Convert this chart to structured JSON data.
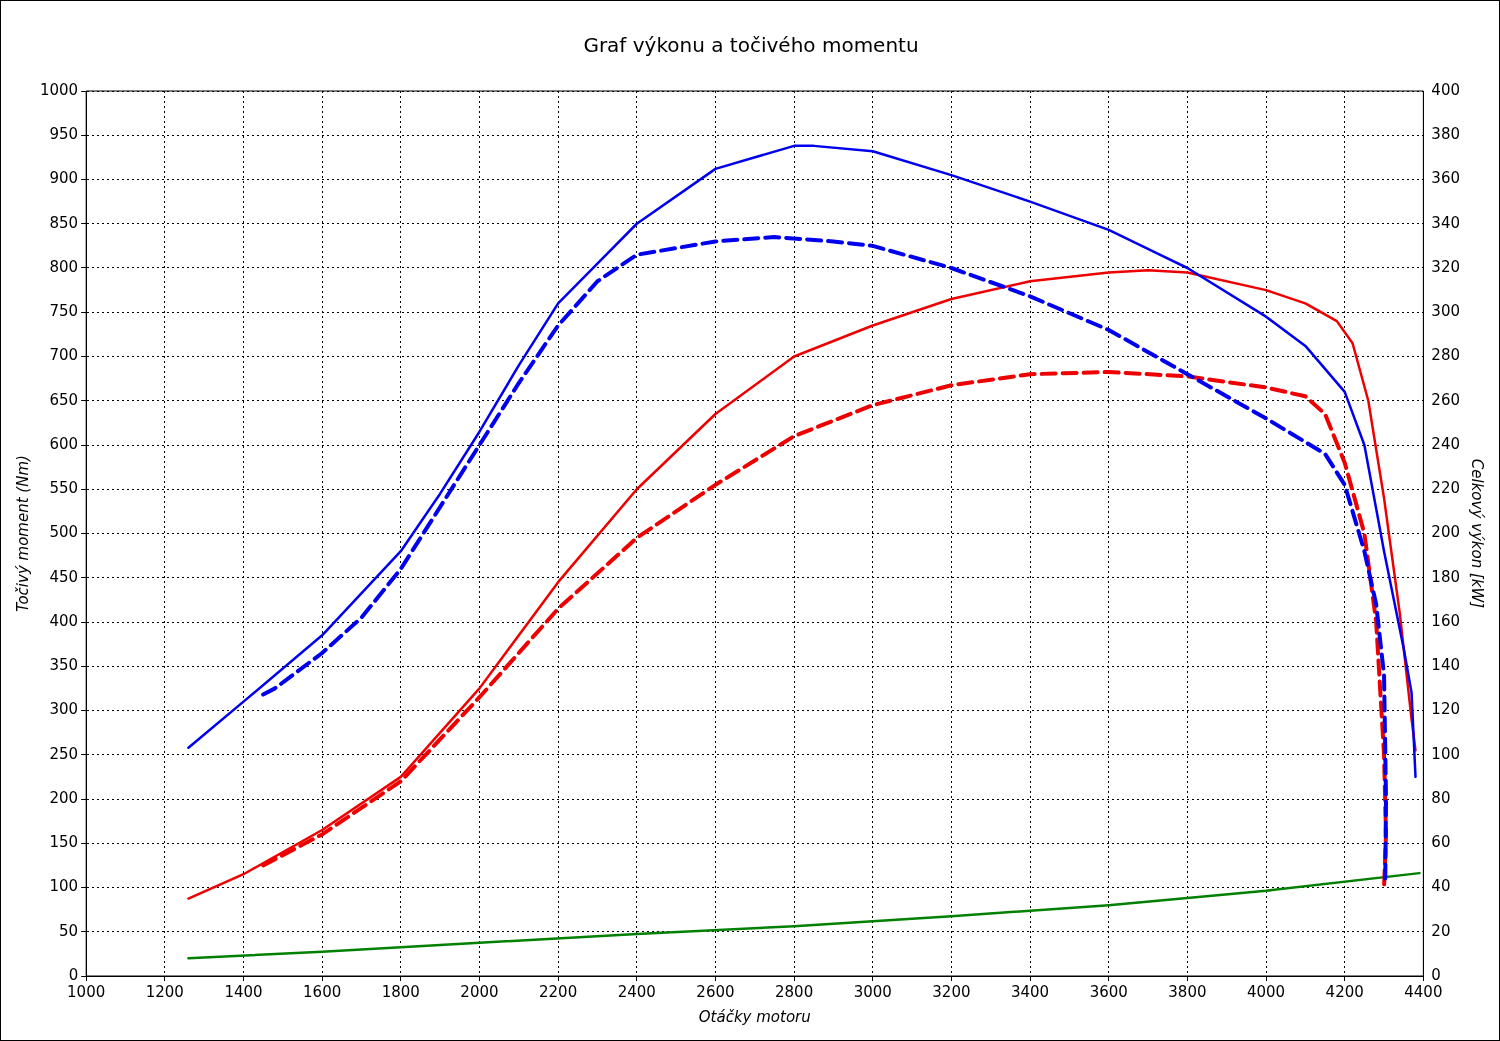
{
  "chart_data": {
    "type": "line",
    "title": "Graf výkonu a točivého momentu",
    "xlabel": "Otáčky motoru",
    "ylabel": "Točivý moment (Nm)",
    "y2label": "Celkový výkon [kW]",
    "xlim": [
      1000,
      4400
    ],
    "xticks": [
      1000,
      1200,
      1400,
      1600,
      1800,
      2000,
      2200,
      2400,
      2600,
      2800,
      3000,
      3200,
      3400,
      3600,
      3800,
      4000,
      4200,
      4400
    ],
    "ylim": [
      0,
      1000
    ],
    "yticks": [
      0,
      50,
      100,
      150,
      200,
      250,
      300,
      350,
      400,
      450,
      500,
      550,
      600,
      650,
      700,
      750,
      800,
      850,
      900,
      950,
      1000
    ],
    "y2lim": [
      0,
      400
    ],
    "y2ticks": [
      0,
      20,
      40,
      60,
      80,
      100,
      120,
      140,
      160,
      180,
      200,
      220,
      240,
      260,
      280,
      300,
      320,
      340,
      360,
      380,
      400
    ],
    "grid": true,
    "legend": false,
    "marker": "none",
    "series": [
      {
        "color": "#0000ee",
        "line_style": "solid",
        "x": [
          1260,
          1400,
          1600,
          1800,
          1900,
          2000,
          2100,
          2200,
          2400,
          2600,
          2800,
          2850,
          3000,
          3200,
          3400,
          3600,
          3800,
          4000,
          4100,
          4200,
          4250,
          4300,
          4350,
          4370,
          4380
        ],
        "values": [
          258,
          310,
          385,
          480,
          545,
          615,
          690,
          760,
          850,
          912,
          938,
          938,
          932,
          905,
          875,
          843,
          800,
          745,
          712,
          660,
          600,
          480,
          370,
          320,
          225
        ]
      },
      {
        "color": "#0000ee",
        "line_style": "dashed",
        "x": [
          1450,
          1480,
          1600,
          1700,
          1800,
          1900,
          2000,
          2100,
          2200,
          2300,
          2400,
          2600,
          2750,
          2900,
          3000,
          3200,
          3400,
          3600,
          3800,
          4000,
          4150,
          4200,
          4250,
          4280,
          4300,
          4305,
          4303
        ],
        "values": [
          318,
          325,
          365,
          405,
          460,
          530,
          600,
          670,
          735,
          785,
          815,
          830,
          835,
          830,
          825,
          800,
          768,
          730,
          680,
          630,
          590,
          555,
          480,
          420,
          340,
          200,
          105
        ]
      },
      {
        "color": "#ee0000",
        "line_style": "solid",
        "axis": "y2",
        "x": [
          1260,
          1400,
          1600,
          1800,
          2000,
          2200,
          2400,
          2600,
          2800,
          3000,
          3200,
          3400,
          3600,
          3700,
          3800,
          4000,
          4100,
          4180,
          4220,
          4260,
          4300,
          4340,
          4370,
          4380
        ],
        "values": [
          35,
          46,
          66,
          90,
          130,
          178,
          220,
          254,
          280,
          294,
          306,
          314,
          318,
          319,
          318,
          310,
          304,
          296,
          286,
          260,
          216,
          164,
          116,
          102
        ]
      },
      {
        "color": "#ee0000",
        "line_style": "dashed",
        "axis": "y2",
        "x": [
          1450,
          1600,
          1800,
          2000,
          2200,
          2400,
          2600,
          2800,
          3000,
          3200,
          3400,
          3600,
          3800,
          4000,
          4100,
          4150,
          4200,
          4250,
          4280,
          4300,
          4305,
          4300
        ],
        "values": [
          50,
          64,
          88,
          126,
          166,
          198,
          222,
          244,
          258,
          267,
          272,
          273,
          271,
          266,
          262,
          254,
          232,
          200,
          160,
          100,
          64,
          40
        ]
      },
      {
        "color": "#008000",
        "line_style": "solid",
        "axis": "y2",
        "x": [
          1260,
          1600,
          2000,
          2400,
          2800,
          3200,
          3600,
          4000,
          4390
        ],
        "values": [
          8,
          11,
          15,
          19,
          22.5,
          27,
          32,
          38.5,
          46.5
        ]
      }
    ]
  }
}
